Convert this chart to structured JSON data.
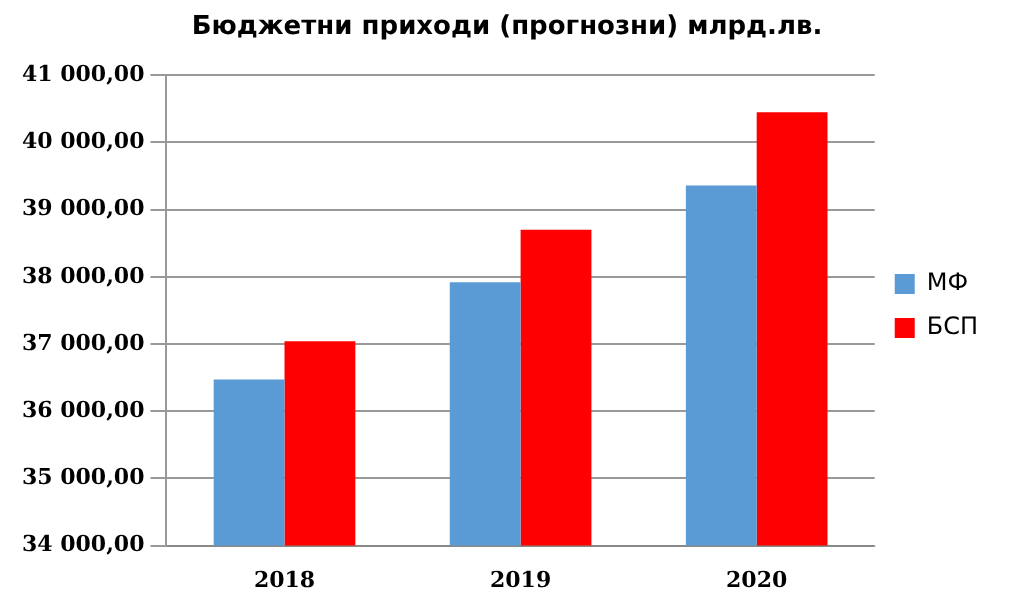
{
  "chart_data": {
    "type": "bar",
    "title": "Бюджетни приходи (прогнозни) млрд.лв.",
    "categories": [
      "2018",
      "2019",
      "2020"
    ],
    "series": [
      {
        "name": "МФ",
        "color": "#5b9bd5",
        "values": [
          36470,
          37920,
          39360
        ]
      },
      {
        "name": "БСП",
        "color": "#ff0000",
        "values": [
          37040,
          38700,
          40450
        ]
      }
    ],
    "ylim": [
      34000,
      41000
    ],
    "yticks": [
      {
        "value": 34000,
        "label": "34 000,00"
      },
      {
        "value": 35000,
        "label": "35 000,00"
      },
      {
        "value": 36000,
        "label": "36 000,00"
      },
      {
        "value": 37000,
        "label": "37 000,00"
      },
      {
        "value": 38000,
        "label": "38 000,00"
      },
      {
        "value": 39000,
        "label": "39 000,00"
      },
      {
        "value": 40000,
        "label": "40 000,00"
      },
      {
        "value": 41000,
        "label": "41 000,00"
      }
    ],
    "grid": "y",
    "legend": "right"
  }
}
